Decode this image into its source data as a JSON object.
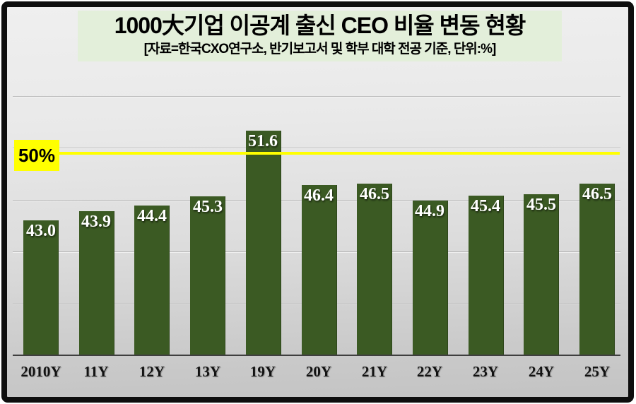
{
  "chart_data": {
    "type": "bar",
    "title": "1000大기업 이공계 출신 CEO 비율 변동 현황",
    "subtitle": "[자료=한국CXO연구소,  반기보고서 및 학부 대학 전공 기준, 단위:%]",
    "categories": [
      "2010Y",
      "11Y",
      "12Y",
      "13Y",
      "19Y",
      "20Y",
      "21Y",
      "22Y",
      "23Y",
      "24Y",
      "25Y"
    ],
    "values": [
      43.0,
      43.9,
      44.4,
      45.3,
      51.6,
      46.4,
      46.5,
      44.9,
      45.4,
      45.5,
      46.5
    ],
    "unit": "%",
    "xlabel": "",
    "ylabel": "",
    "ylim": [
      30,
      57.5
    ],
    "gridline_values": [
      35,
      40,
      45,
      50,
      55
    ],
    "grid": true,
    "legend": null,
    "reference_line": {
      "value": 50,
      "label": "50%",
      "color": "#ffff00"
    },
    "colors": {
      "bar": "#3b5a23",
      "value_label": "#ffffff",
      "title_box_bg": "#e3efda",
      "reference_label_bg": "#ffff00"
    }
  }
}
